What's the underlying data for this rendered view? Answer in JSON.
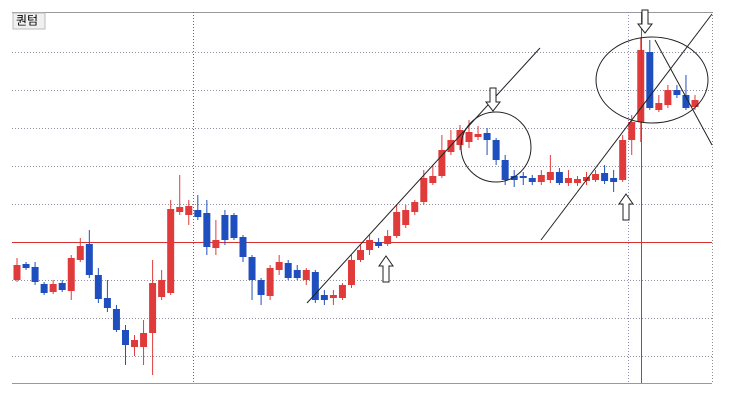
{
  "chart_data": {
    "type": "candlestick",
    "title": "퀀텀",
    "up_color": "#e03a3a",
    "down_color": "#1f4fbf",
    "ylim": [
      0,
      371
    ],
    "yticks": [
      27,
      65,
      103,
      141,
      179,
      217,
      255,
      293,
      331
    ],
    "grid": true,
    "hline": 141,
    "hline_color": "#d93030",
    "open": [
      103,
      119,
      116,
      99,
      91,
      100,
      92,
      123,
      139,
      108,
      85,
      74,
      53,
      36,
      36,
      50,
      86,
      90,
      171,
      168,
      173,
      170,
      135,
      168,
      168,
      146,
      126,
      103,
      87,
      113,
      120,
      113,
      103,
      111,
      88,
      85,
      85,
      98,
      123,
      133,
      141,
      139,
      147,
      158,
      171,
      181,
      200,
      207,
      231,
      238,
      241,
      246,
      250,
      243,
      223,
      207,
      207,
      205,
      201,
      203,
      211,
      200,
      200,
      202,
      203,
      210,
      205,
      203,
      243,
      261,
      331,
      273,
      278,
      293,
      288,
      276
    ],
    "high": [
      125,
      121,
      121,
      101,
      103,
      103,
      128,
      145,
      153,
      115,
      103,
      78,
      58,
      48,
      63,
      123,
      113,
      183,
      208,
      183,
      188,
      183,
      163,
      173,
      170,
      148,
      128,
      105,
      118,
      128,
      123,
      118,
      115,
      113,
      93,
      93,
      100,
      128,
      138,
      148,
      145,
      153,
      178,
      178,
      183,
      213,
      218,
      248,
      253,
      258,
      263,
      257,
      255,
      245,
      228,
      213,
      211,
      208,
      213,
      228,
      215,
      213,
      207,
      211,
      213,
      218,
      213,
      248,
      268,
      345,
      343,
      288,
      298,
      298,
      308,
      288
    ],
    "low": [
      101,
      113,
      98,
      88,
      89,
      91,
      83,
      121,
      105,
      80,
      71,
      51,
      18,
      27,
      18,
      8,
      83,
      88,
      168,
      158,
      163,
      128,
      128,
      138,
      143,
      121,
      83,
      78,
      83,
      108,
      103,
      103,
      98,
      80,
      78,
      78,
      83,
      95,
      121,
      128,
      135,
      137,
      145,
      155,
      168,
      178,
      198,
      205,
      228,
      233,
      235,
      243,
      228,
      218,
      198,
      196,
      198,
      198,
      198,
      200,
      198,
      197,
      197,
      198,
      201,
      199,
      191,
      201,
      228,
      241,
      273,
      271,
      275,
      285,
      273,
      273
    ],
    "close": [
      118,
      115,
      101,
      90,
      99,
      93,
      125,
      137,
      108,
      84,
      75,
      53,
      38,
      43,
      50,
      100,
      103,
      174,
      176,
      177,
      166,
      136,
      143,
      143,
      145,
      126,
      103,
      88,
      115,
      121,
      105,
      105,
      113,
      83,
      83,
      88,
      98,
      123,
      133,
      143,
      137,
      147,
      171,
      173,
      181,
      205,
      207,
      233,
      243,
      253,
      251,
      249,
      243,
      223,
      203,
      203,
      205,
      201,
      208,
      211,
      200,
      205,
      204,
      206,
      209,
      202,
      201,
      243,
      261,
      333,
      275,
      280,
      293,
      288,
      275,
      283
    ]
  }
}
